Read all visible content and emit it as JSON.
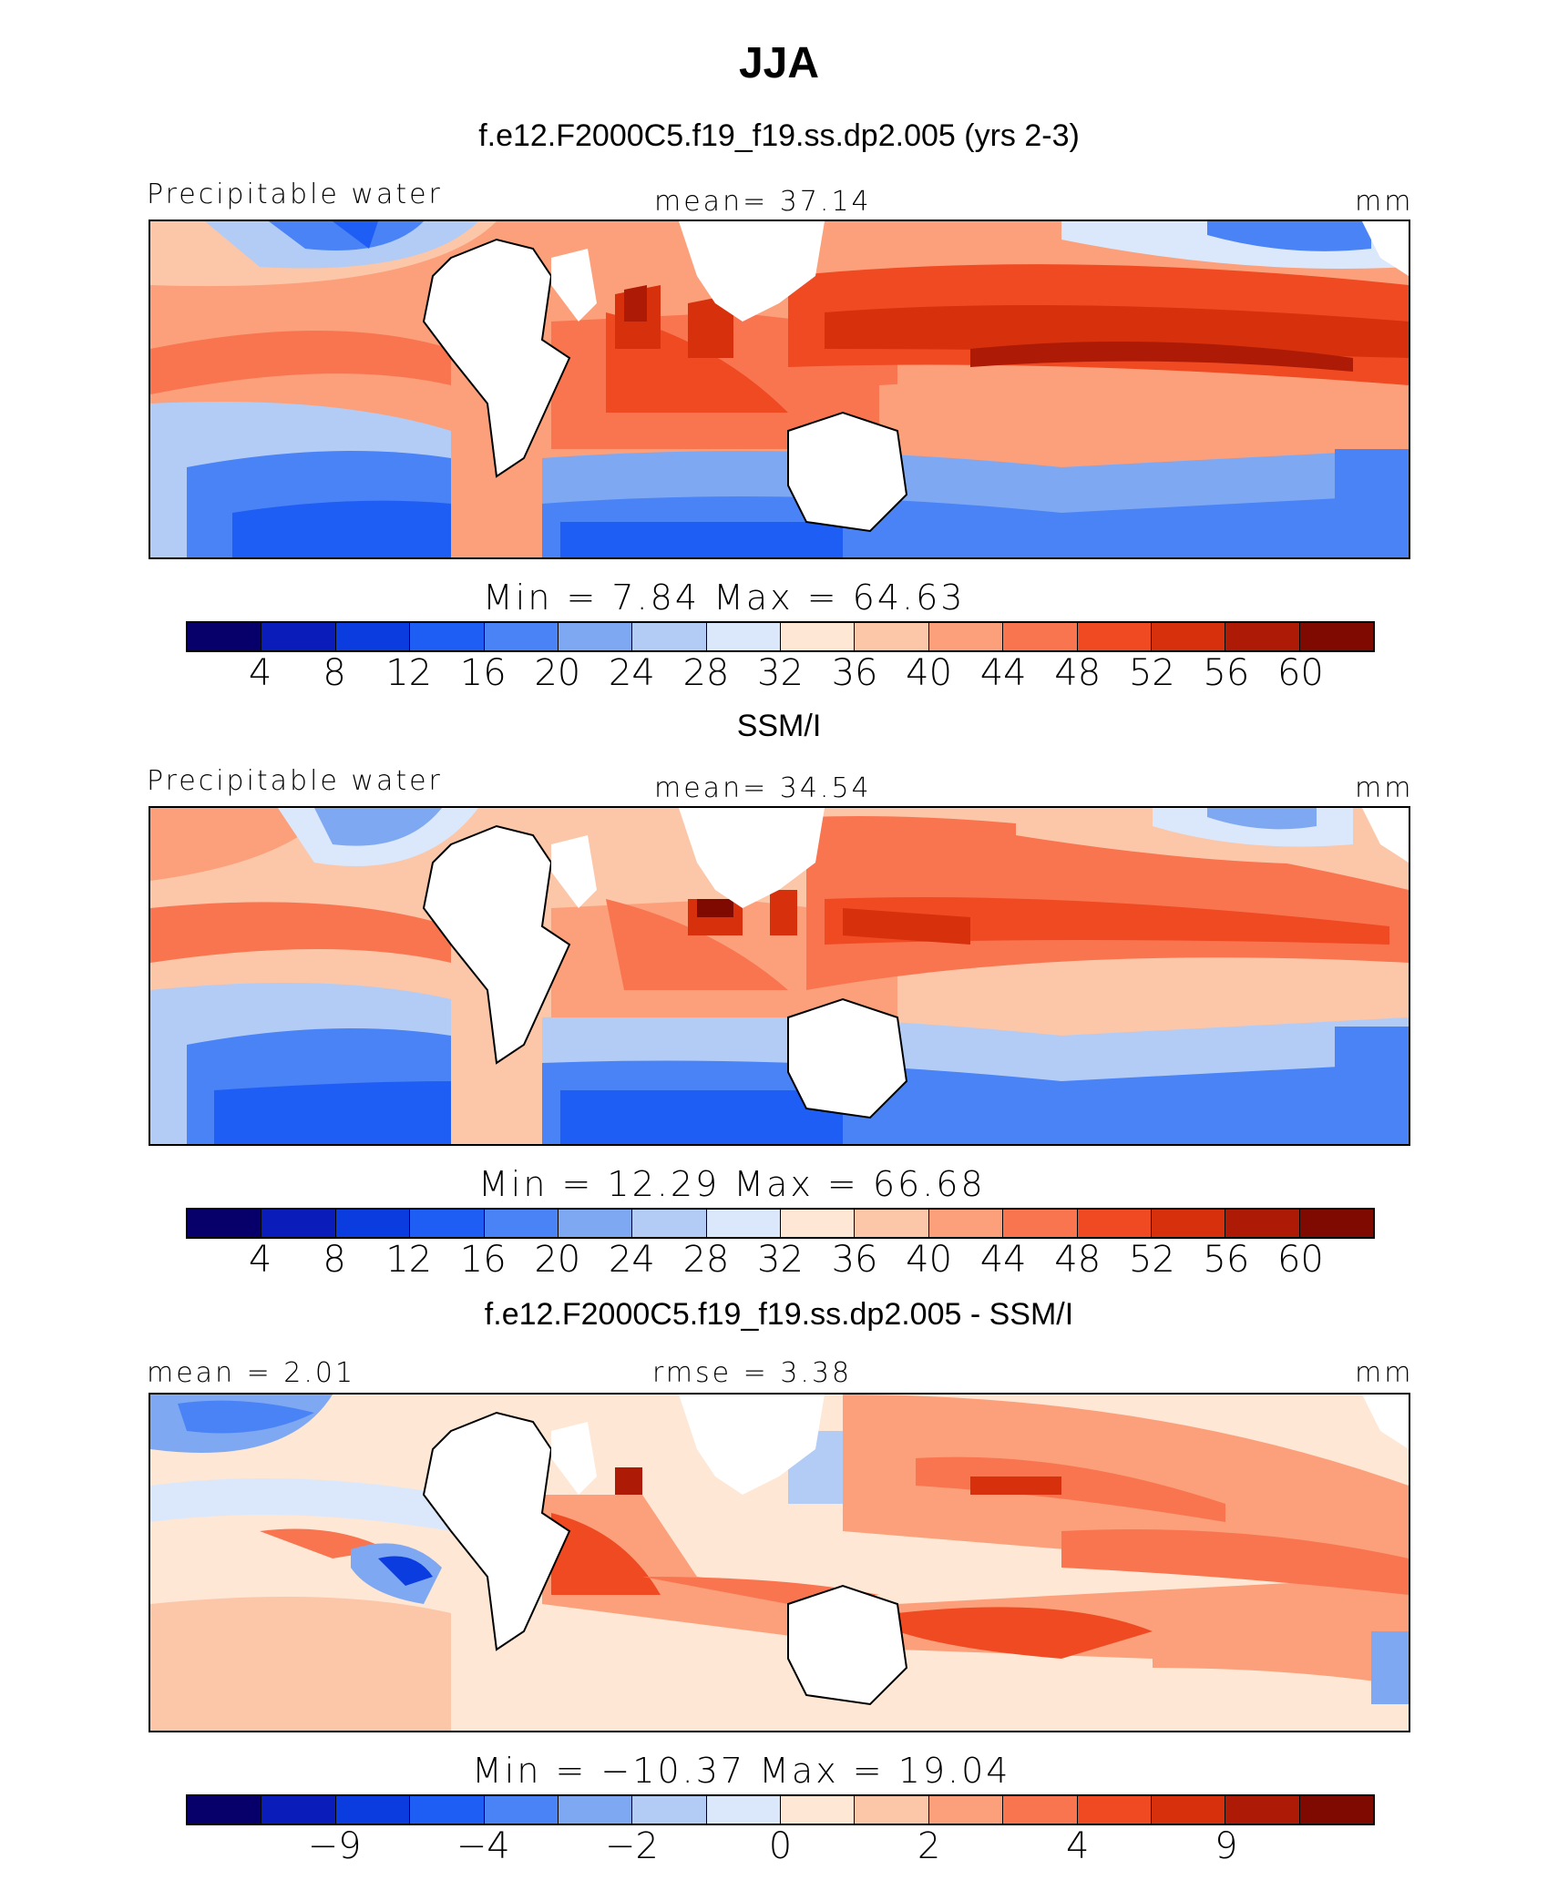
{
  "title": "JJA",
  "panels": [
    {
      "subtitle": "f.e12.F2000C5.f19_f19.ss.dp2.005 (yrs 2-3)",
      "left_label": "Precipitable water",
      "center_label": "mean=  37.14",
      "right_label": "mm",
      "stats": "Min =    7.84 Max =   64.63",
      "colorbar_ticks": [
        "4",
        "8",
        "12",
        "16",
        "20",
        "24",
        "28",
        "32",
        "36",
        "40",
        "44",
        "48",
        "52",
        "56",
        "60"
      ]
    },
    {
      "subtitle": "SSM/I",
      "left_label": "Precipitable water",
      "center_label": "mean=  34.54",
      "right_label": "mm",
      "stats": "Min =  12.29 Max =   66.68",
      "colorbar_ticks": [
        "4",
        "8",
        "12",
        "16",
        "20",
        "24",
        "28",
        "32",
        "36",
        "40",
        "44",
        "48",
        "52",
        "56",
        "60"
      ]
    },
    {
      "subtitle": "f.e12.F2000C5.f19_f19.ss.dp2.005 - SSM/I",
      "left_label": "mean =   2.01",
      "center_label": "rmse =     3.38",
      "right_label": "mm",
      "stats": "Min = −10.37 Max =   19.04",
      "colorbar_ticks": [
        "−9",
        "−4",
        "−2",
        "0",
        "2",
        "4",
        "9"
      ]
    }
  ],
  "colorbar_colors": [
    "#08006a",
    "#0a1dbb",
    "#0b3ce0",
    "#1f5ef4",
    "#4a83f5",
    "#7fa8f3",
    "#b2ccf5",
    "#dbe8fb",
    "#fee7d4",
    "#fcc6a8",
    "#fba07a",
    "#f87550",
    "#ef4a22",
    "#d6300c",
    "#ad1a06",
    "#7e0a02"
  ],
  "chart_data": [
    {
      "type": "heatmap",
      "title": "f.e12.F2000C5.f19_f19.ss.dp2.005 (yrs 2-3)",
      "variable": "Precipitable water",
      "units": "mm",
      "mean": 37.14,
      "min": 7.84,
      "max": 64.63,
      "levels": [
        4,
        8,
        12,
        16,
        20,
        24,
        28,
        32,
        36,
        40,
        44,
        48,
        52,
        56,
        60
      ]
    },
    {
      "type": "heatmap",
      "title": "SSM/I",
      "variable": "Precipitable water",
      "units": "mm",
      "mean": 34.54,
      "min": 12.29,
      "max": 66.68,
      "levels": [
        4,
        8,
        12,
        16,
        20,
        24,
        28,
        32,
        36,
        40,
        44,
        48,
        52,
        56,
        60
      ]
    },
    {
      "type": "heatmap",
      "title": "f.e12.F2000C5.f19_f19.ss.dp2.005 - SSM/I",
      "units": "mm",
      "mean": 2.01,
      "rmse": 3.38,
      "min": -10.37,
      "max": 19.04,
      "levels": [
        -9,
        -4,
        -2,
        0,
        2,
        4,
        9
      ]
    }
  ]
}
